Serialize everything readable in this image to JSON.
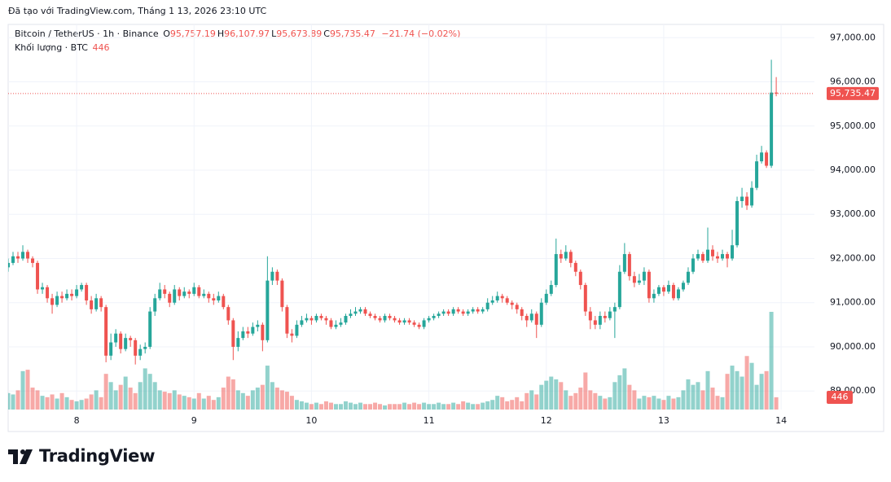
{
  "header": "Đã tạo với TradingView.com, Tháng 1 13, 2026 23:10 UTC",
  "logo": "TradingView",
  "chart_data": {
    "type": "candlestick",
    "title": "Bitcoin / TetherUS · 1h · Binance",
    "legend": [
      {
        "key": "O",
        "value": "95,757.19"
      },
      {
        "key": "H",
        "value": "96,107.97"
      },
      {
        "key": "L",
        "value": "95,673.89"
      },
      {
        "key": "C",
        "value": "95,735.47"
      }
    ],
    "change": "−21.74 (−0.02%)",
    "volume_title": "Khối lượng · BTC",
    "last_close_label": "95,735.47",
    "up_color": "#26a69a",
    "down_color": "#ef5350",
    "grid": true,
    "ylim": [
      88580,
      97300
    ],
    "yticks": [
      {
        "value": 89000,
        "label": "89,000.00"
      },
      {
        "value": 90000,
        "label": "90,000.00"
      },
      {
        "value": 91000,
        "label": "91,000.00"
      },
      {
        "value": 92000,
        "label": "92,000.00"
      },
      {
        "value": 93000,
        "label": "93,000.00"
      },
      {
        "value": 94000,
        "label": "94,000.00"
      },
      {
        "value": 95000,
        "label": "95,000.00"
      },
      {
        "value": 96000,
        "label": "96,000.00"
      },
      {
        "value": 97000,
        "label": "97,000.00"
      }
    ],
    "categories": [
      null,
      null,
      null,
      null,
      null,
      null,
      null,
      null,
      null,
      null,
      null,
      null,
      null,
      null,
      "8",
      null,
      null,
      null,
      null,
      null,
      null,
      null,
      null,
      null,
      null,
      null,
      null,
      null,
      null,
      null,
      null,
      null,
      null,
      null,
      null,
      null,
      null,
      null,
      "9",
      null,
      null,
      null,
      null,
      null,
      null,
      null,
      null,
      null,
      null,
      null,
      null,
      null,
      null,
      null,
      null,
      null,
      null,
      null,
      null,
      null,
      null,
      null,
      "10",
      null,
      null,
      null,
      null,
      null,
      null,
      null,
      null,
      null,
      null,
      null,
      null,
      null,
      null,
      null,
      null,
      null,
      null,
      null,
      null,
      null,
      null,
      null,
      "11",
      null,
      null,
      null,
      null,
      null,
      null,
      null,
      null,
      null,
      null,
      null,
      null,
      null,
      null,
      null,
      null,
      null,
      null,
      null,
      null,
      null,
      null,
      null,
      "12",
      null,
      null,
      null,
      null,
      null,
      null,
      null,
      null,
      null,
      null,
      null,
      null,
      null,
      null,
      null,
      null,
      null,
      null,
      null,
      null,
      null,
      null,
      null,
      "13",
      null,
      null,
      null,
      null,
      null,
      null,
      null,
      null,
      null,
      null,
      null,
      null,
      null,
      null,
      null,
      null,
      null,
      null,
      null,
      null,
      null,
      null,
      null,
      "14"
    ],
    "open": [
      91800,
      91900,
      92050,
      92000,
      92150,
      92000,
      91900,
      91300,
      91350,
      91100,
      90950,
      91150,
      91100,
      91200,
      91150,
      91300,
      91400,
      91050,
      90850,
      91100,
      90900,
      89800,
      90100,
      90300,
      89950,
      90200,
      90150,
      89800,
      89950,
      90000,
      90800,
      91100,
      91300,
      91200,
      91000,
      91300,
      91150,
      91250,
      91200,
      91350,
      91150,
      91200,
      91100,
      91050,
      91150,
      90900,
      90600,
      90000,
      90200,
      90350,
      90300,
      90450,
      90500,
      90150,
      91500,
      91700,
      91500,
      90900,
      90300,
      90250,
      90500,
      90600,
      90650,
      90600,
      90700,
      90650,
      90600,
      90450,
      90500,
      90550,
      90700,
      90750,
      90800,
      90850,
      90750,
      90700,
      90650,
      90600,
      90700,
      90650,
      90600,
      90550,
      90600,
      90550,
      90500,
      90450,
      90600,
      90650,
      90700,
      90750,
      90800,
      90750,
      90850,
      90800,
      90750,
      90800,
      90850,
      90800,
      90850,
      91000,
      91050,
      91150,
      91100,
      91000,
      90950,
      90850,
      90700,
      90600,
      90750,
      90500,
      91000,
      91200,
      91400,
      92100,
      92000,
      92150,
      91900,
      91700,
      91400,
      90800,
      90600,
      90500,
      90700,
      90650,
      90800,
      90900,
      91700,
      92100,
      91600,
      91450,
      91500,
      91700,
      91100,
      91200,
      91350,
      91250,
      91400,
      91100,
      91300,
      91450,
      91700,
      92000,
      92100,
      91950,
      92200,
      92050,
      92000,
      92100,
      92000,
      92300,
      93300,
      93400,
      93200,
      93600,
      94200,
      94400,
      94100,
      95757.19,
      null
    ],
    "high": [
      92000,
      92150,
      92150,
      92300,
      92200,
      92050,
      91950,
      91450,
      91400,
      91200,
      91250,
      91250,
      91300,
      91300,
      91400,
      91450,
      91450,
      91150,
      91200,
      91150,
      90950,
      90300,
      90400,
      90350,
      90300,
      90250,
      90200,
      90050,
      90100,
      90900,
      91200,
      91450,
      91400,
      91250,
      91400,
      91350,
      91350,
      91300,
      91450,
      91400,
      91300,
      91250,
      91200,
      91250,
      91200,
      90950,
      90650,
      90350,
      90450,
      90450,
      90550,
      90600,
      90550,
      92050,
      91800,
      91750,
      91550,
      90950,
      90400,
      90600,
      90700,
      90750,
      90700,
      90750,
      90750,
      90700,
      90650,
      90600,
      90650,
      90750,
      90850,
      90900,
      90900,
      90900,
      90800,
      90750,
      90700,
      90750,
      90750,
      90700,
      90650,
      90650,
      90650,
      90600,
      90550,
      90650,
      90700,
      90750,
      90800,
      90850,
      90850,
      90900,
      90900,
      90850,
      90850,
      90900,
      90900,
      90900,
      91100,
      91150,
      91250,
      91200,
      91150,
      91050,
      91000,
      90900,
      90750,
      90850,
      90800,
      91100,
      91300,
      91500,
      92450,
      92200,
      92300,
      92200,
      91950,
      91750,
      91450,
      90900,
      90700,
      90800,
      90800,
      90900,
      91000,
      91850,
      92350,
      92150,
      91700,
      91650,
      91800,
      91750,
      91300,
      91400,
      91400,
      91500,
      91450,
      91350,
      91500,
      91800,
      92100,
      92200,
      92150,
      92700,
      92300,
      92150,
      92200,
      92150,
      92650,
      93400,
      93600,
      93500,
      93750,
      94350,
      94550,
      94450,
      96500,
      96107.97,
      null
    ],
    "low": [
      91700,
      91850,
      91900,
      91950,
      91900,
      91800,
      91200,
      91200,
      91000,
      90750,
      90900,
      91000,
      91050,
      91050,
      91100,
      91250,
      90950,
      90750,
      90800,
      90800,
      89650,
      89700,
      90000,
      89850,
      89900,
      90000,
      89600,
      89700,
      89850,
      89950,
      90700,
      91050,
      91100,
      90900,
      90950,
      91050,
      91100,
      91100,
      91150,
      91100,
      91100,
      91000,
      90950,
      91000,
      90850,
      90500,
      89700,
      89900,
      90150,
      90200,
      90250,
      90350,
      89900,
      90100,
      91400,
      91400,
      90800,
      90200,
      90100,
      90200,
      90450,
      90550,
      90500,
      90550,
      90600,
      90500,
      90400,
      90400,
      90450,
      90500,
      90650,
      90700,
      90750,
      90700,
      90650,
      90600,
      90550,
      90550,
      90600,
      90550,
      90500,
      90500,
      90500,
      90450,
      90400,
      90400,
      90550,
      90600,
      90650,
      90700,
      90700,
      90700,
      90750,
      90700,
      90700,
      90750,
      90750,
      90750,
      90800,
      90950,
      91000,
      91000,
      90950,
      90850,
      90750,
      90600,
      90450,
      90550,
      90200,
      90450,
      90950,
      91150,
      91350,
      91900,
      91950,
      91800,
      91600,
      91300,
      90700,
      90400,
      90400,
      90400,
      90550,
      90600,
      90200,
      90850,
      91650,
      91500,
      91350,
      91400,
      91400,
      91000,
      91000,
      91150,
      91150,
      91200,
      91050,
      91050,
      91250,
      91400,
      91650,
      91950,
      91900,
      91900,
      91950,
      91900,
      91950,
      91800,
      91950,
      92250,
      93150,
      93100,
      93150,
      93550,
      94150,
      94050,
      94050,
      95673.89,
      null
    ],
    "close": [
      91900,
      92050,
      92000,
      92150,
      92000,
      91900,
      91300,
      91350,
      91100,
      90950,
      91150,
      91100,
      91200,
      91150,
      91300,
      91400,
      91050,
      90850,
      91100,
      90900,
      89800,
      90100,
      90300,
      89950,
      90200,
      90150,
      89800,
      89950,
      90000,
      90800,
      91100,
      91300,
      91200,
      91000,
      91300,
      91150,
      91250,
      91200,
      91350,
      91150,
      91200,
      91100,
      91050,
      91150,
      90900,
      90600,
      90000,
      90200,
      90350,
      90300,
      90450,
      90500,
      90150,
      91500,
      91700,
      91500,
      90900,
      90300,
      90250,
      90500,
      90600,
      90650,
      90600,
      90700,
      90650,
      90600,
      90450,
      90500,
      90550,
      90700,
      90750,
      90800,
      90850,
      90750,
      90700,
      90650,
      90600,
      90700,
      90650,
      90600,
      90550,
      90600,
      90550,
      90500,
      90450,
      90600,
      90650,
      90700,
      90750,
      90800,
      90750,
      90850,
      90800,
      90750,
      90800,
      90850,
      90800,
      90850,
      91000,
      91050,
      91150,
      91100,
      91000,
      90950,
      90850,
      90700,
      90600,
      90750,
      90500,
      91000,
      91200,
      91400,
      92100,
      92000,
      92150,
      91900,
      91700,
      91400,
      90800,
      90600,
      90500,
      90700,
      90650,
      90800,
      90900,
      91700,
      92100,
      91600,
      91450,
      91500,
      91700,
      91100,
      91200,
      91350,
      91250,
      91400,
      91100,
      91300,
      91450,
      91700,
      92000,
      92100,
      91950,
      92200,
      92050,
      92000,
      92100,
      92000,
      92300,
      93300,
      93400,
      93200,
      93600,
      94200,
      94400,
      94100,
      95757.19,
      95735.47,
      null
    ],
    "volume": [
      600,
      550,
      700,
      1400,
      1450,
      800,
      700,
      500,
      450,
      550,
      400,
      600,
      450,
      350,
      300,
      350,
      400,
      550,
      700,
      450,
      1300,
      1000,
      700,
      900,
      1200,
      800,
      600,
      1000,
      1500,
      1300,
      1000,
      700,
      650,
      600,
      700,
      550,
      500,
      450,
      400,
      600,
      400,
      500,
      350,
      450,
      800,
      1200,
      1100,
      700,
      600,
      500,
      700,
      800,
      900,
      1600,
      1000,
      800,
      700,
      650,
      500,
      350,
      300,
      250,
      200,
      250,
      200,
      300,
      250,
      200,
      200,
      300,
      250,
      200,
      250,
      200,
      200,
      250,
      200,
      150,
      200,
      200,
      200,
      250,
      200,
      250,
      200,
      250,
      200,
      200,
      250,
      200,
      200,
      250,
      200,
      300,
      250,
      200,
      200,
      250,
      300,
      350,
      500,
      450,
      300,
      350,
      450,
      300,
      600,
      700,
      550,
      900,
      1050,
      1200,
      1100,
      1000,
      700,
      500,
      600,
      800,
      1350,
      700,
      600,
      500,
      400,
      450,
      1000,
      1250,
      1500,
      900,
      700,
      400,
      500,
      450,
      500,
      400,
      350,
      500,
      400,
      450,
      700,
      1100,
      900,
      1000,
      700,
      1400,
      800,
      500,
      450,
      1300,
      1600,
      1400,
      1200,
      1950,
      1700,
      900,
      1300,
      1400,
      3560,
      446,
      null
    ]
  }
}
